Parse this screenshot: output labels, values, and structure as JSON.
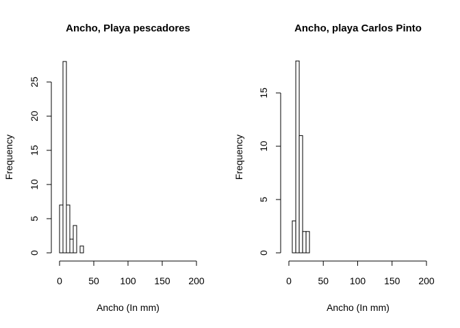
{
  "chart_data": [
    {
      "type": "bar",
      "title": "Ancho, Playa pescadores",
      "xlabel": "Ancho (In mm)",
      "ylabel": "Frequency",
      "xlim": [
        0,
        200
      ],
      "ylim": [
        0,
        28
      ],
      "x_ticks": [
        0,
        50,
        100,
        150,
        200
      ],
      "y_ticks": [
        0,
        5,
        10,
        15,
        20,
        25
      ],
      "bin_width": 5,
      "bins": [
        {
          "x0": 0,
          "x1": 5,
          "count": 7
        },
        {
          "x0": 5,
          "x1": 10,
          "count": 28
        },
        {
          "x0": 10,
          "x1": 15,
          "count": 7
        },
        {
          "x0": 15,
          "x1": 20,
          "count": 2
        },
        {
          "x0": 20,
          "x1": 25,
          "count": 4
        },
        {
          "x0": 25,
          "x1": 30,
          "count": 0
        },
        {
          "x0": 30,
          "x1": 35,
          "count": 1
        }
      ]
    },
    {
      "type": "bar",
      "title": "Ancho, playa Carlos Pinto",
      "xlabel": "Ancho (In mm)",
      "ylabel": "Frequency",
      "xlim": [
        0,
        200
      ],
      "ylim": [
        0,
        18
      ],
      "x_ticks": [
        0,
        50,
        100,
        150,
        200
      ],
      "y_ticks": [
        0,
        5,
        10,
        15
      ],
      "bin_width": 5,
      "bins": [
        {
          "x0": 5,
          "x1": 10,
          "count": 3
        },
        {
          "x0": 10,
          "x1": 15,
          "count": 18
        },
        {
          "x0": 15,
          "x1": 20,
          "count": 11
        },
        {
          "x0": 20,
          "x1": 25,
          "count": 2
        },
        {
          "x0": 25,
          "x1": 30,
          "count": 2
        }
      ]
    }
  ]
}
